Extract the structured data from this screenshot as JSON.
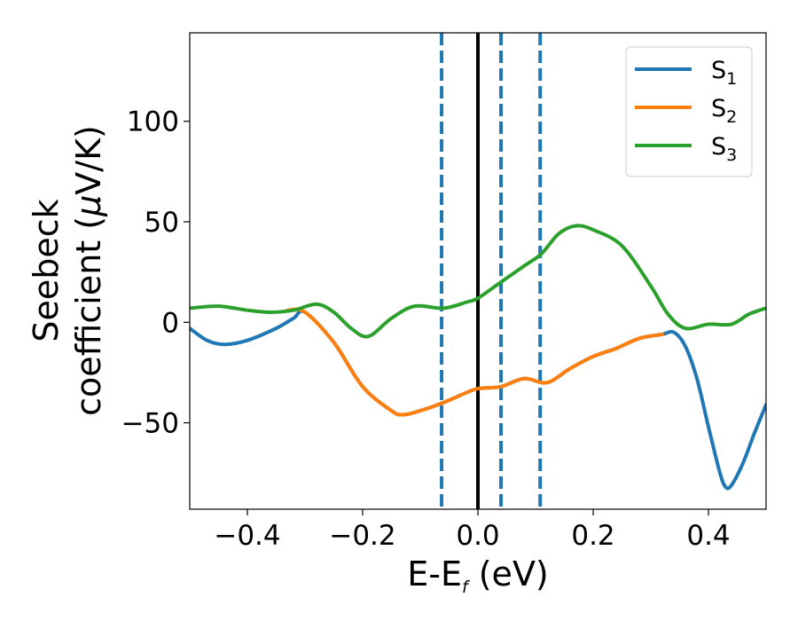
{
  "chart_data": {
    "type": "line",
    "xlabel": {
      "main": "E-E",
      "sub": "f",
      "tail": " (eV)"
    },
    "ylabel": {
      "line1": "Seebeck",
      "line2_pre": "coefficient  (",
      "line2_mu": "μ",
      "line2_post": "V/K)"
    },
    "xlim": [
      -0.5,
      0.5
    ],
    "ylim": [
      -93,
      144
    ],
    "xticks": [
      -0.4,
      -0.2,
      0.0,
      0.2,
      0.4
    ],
    "xtick_labels": [
      "−0.4",
      "−0.2",
      "0.0",
      "0.2",
      "0.4"
    ],
    "yticks": [
      -50,
      0,
      50,
      100
    ],
    "ytick_labels": [
      "−50",
      "0",
      "50",
      "100"
    ],
    "grid": false,
    "legend_position": "top-right",
    "vertical_lines": [
      {
        "x": 0.0,
        "style": "solid",
        "color": "#000000"
      },
      {
        "x": -0.063,
        "style": "dashed",
        "color": "#1f77b4"
      },
      {
        "x": 0.04,
        "style": "dashed",
        "color": "#1f77b4"
      },
      {
        "x": 0.108,
        "style": "dashed",
        "color": "#1f77b4"
      }
    ],
    "series": [
      {
        "name": "S",
        "sub": "1",
        "color": "#1f77b4",
        "x": [
          -0.5,
          -0.47,
          -0.44,
          -0.4,
          -0.35,
          -0.32,
          -0.3,
          -0.25,
          -0.2,
          -0.15,
          -0.13,
          -0.1,
          -0.06,
          -0.02,
          0.0,
          0.04,
          0.08,
          0.12,
          0.16,
          0.2,
          0.24,
          0.28,
          0.32,
          0.34,
          0.36,
          0.38,
          0.4,
          0.42,
          0.43,
          0.44,
          0.46,
          0.48,
          0.5
        ],
        "y": [
          -3,
          -9,
          -11,
          -9,
          -3,
          2,
          5,
          -10,
          -32,
          -44,
          -46,
          -44,
          -40,
          -35,
          -33,
          -32,
          -28,
          -30,
          -23,
          -17,
          -13,
          -8,
          -6,
          -5,
          -12,
          -28,
          -52,
          -75,
          -82,
          -81,
          -70,
          -55,
          -41
        ]
      },
      {
        "name": "S",
        "sub": "2",
        "color": "#ff7f0e",
        "x": [
          -0.33,
          -0.3,
          -0.25,
          -0.2,
          -0.15,
          -0.13,
          -0.1,
          -0.06,
          -0.02,
          0.0,
          0.04,
          0.08,
          0.12,
          0.16,
          0.2,
          0.24,
          0.28,
          0.32
        ],
        "y": [
          6,
          5,
          -10,
          -32,
          -44,
          -46,
          -44,
          -40,
          -35,
          -33,
          -32,
          -28,
          -30,
          -23,
          -17,
          -13,
          -8,
          -6
        ]
      },
      {
        "name": "S",
        "sub": "3",
        "color": "#2ca02c",
        "x": [
          -0.5,
          -0.45,
          -0.4,
          -0.36,
          -0.32,
          -0.28,
          -0.25,
          -0.22,
          -0.19,
          -0.15,
          -0.11,
          -0.06,
          -0.02,
          0.0,
          0.04,
          0.08,
          0.11,
          0.14,
          0.17,
          0.2,
          0.25,
          0.3,
          0.33,
          0.36,
          0.4,
          0.44,
          0.47,
          0.5
        ],
        "y": [
          7,
          8,
          6,
          5,
          6,
          9,
          5,
          -3,
          -7,
          2,
          8,
          7,
          10,
          12,
          20,
          28,
          34,
          44,
          48,
          46,
          38,
          18,
          4,
          -3,
          -1,
          -1,
          4,
          7
        ]
      }
    ]
  }
}
